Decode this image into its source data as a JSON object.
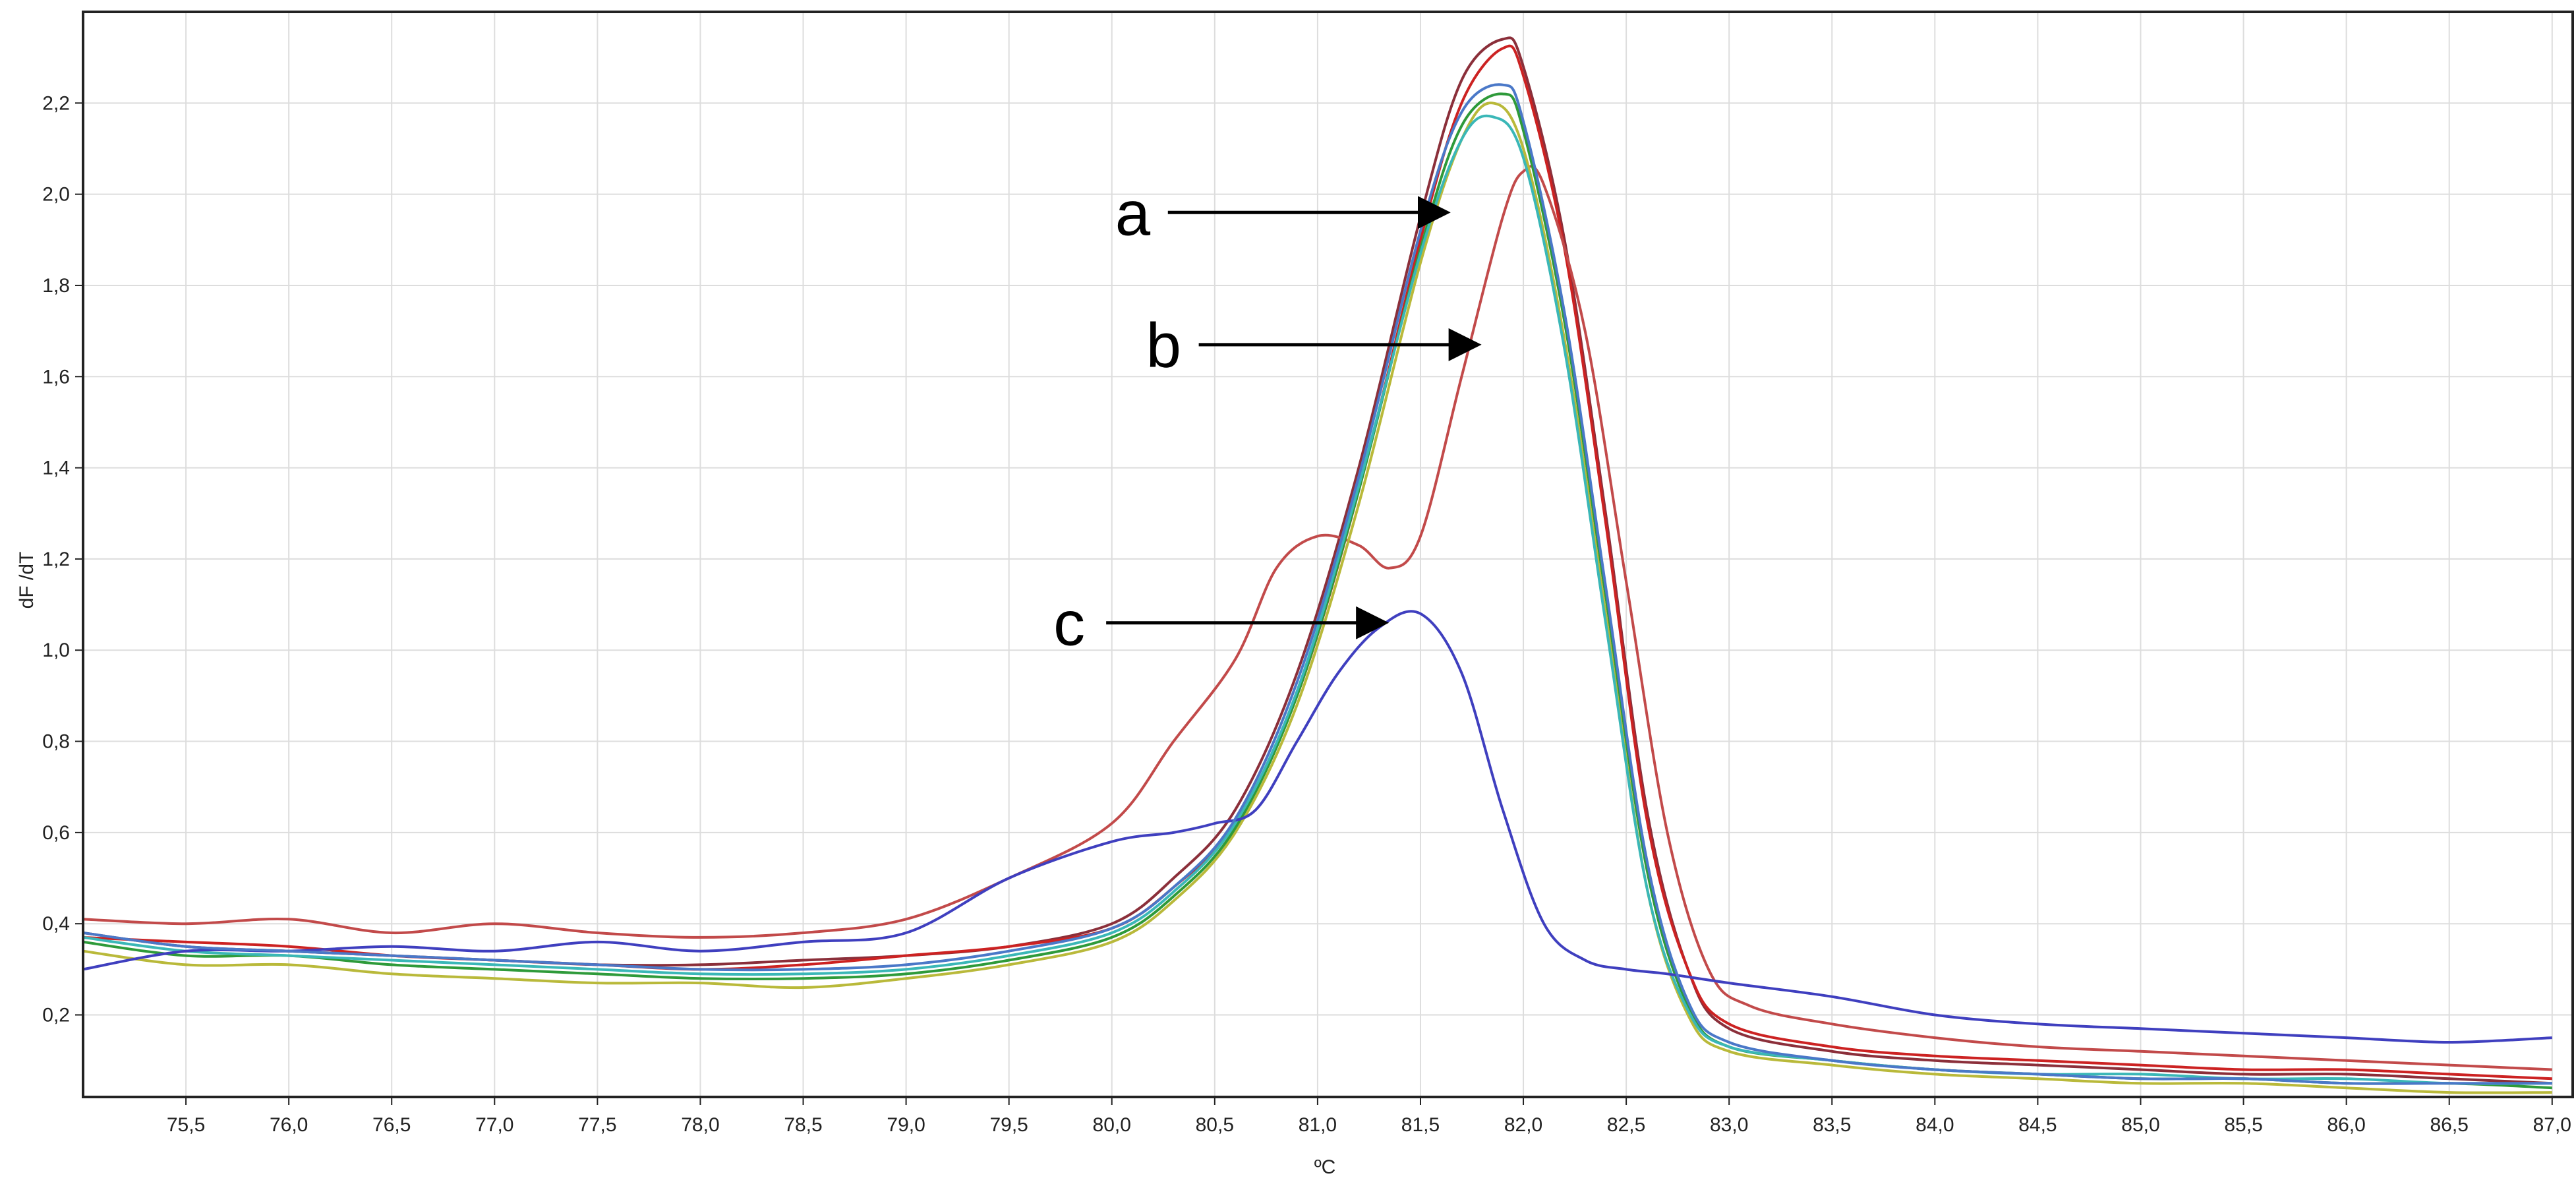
{
  "chart_data": {
    "type": "line",
    "title": "",
    "xlabel": "ºC",
    "ylabel": "dF /dT",
    "xlim": [
      75.0,
      87.1
    ],
    "ylim": [
      0.02,
      2.4
    ],
    "grid": true,
    "x_ticks": [
      75.5,
      76.0,
      76.5,
      77.0,
      77.5,
      78.0,
      78.5,
      79.0,
      79.5,
      80.0,
      80.5,
      81.0,
      81.5,
      82.0,
      82.5,
      83.0,
      83.5,
      84.0,
      84.5,
      85.0,
      85.5,
      86.0,
      86.5,
      87.0
    ],
    "x_tick_labels": [
      "75,5",
      "76,0",
      "76,5",
      "77,0",
      "77,5",
      "78,0",
      "78,5",
      "79,0",
      "79,5",
      "80,0",
      "80,5",
      "81,0",
      "81,5",
      "82,0",
      "82,5",
      "83,0",
      "83,5",
      "84,0",
      "84,5",
      "85,0",
      "85,5",
      "86,0",
      "86,5",
      "87,0"
    ],
    "y_ticks": [
      0.2,
      0.4,
      0.6,
      0.8,
      1.0,
      1.2,
      1.4,
      1.6,
      1.8,
      2.0,
      2.2
    ],
    "y_tick_labels": [
      "0,2",
      "0,4",
      "0,6",
      "0,8",
      "1,0",
      "1,2",
      "1,4",
      "1,6",
      "1,8",
      "2,0",
      "2,2"
    ],
    "series": [
      {
        "color": "#8b2f3a",
        "x": [
          75.0,
          75.5,
          76.0,
          76.5,
          77.0,
          77.5,
          78.0,
          78.5,
          79.0,
          79.5,
          80.0,
          80.3,
          80.6,
          80.9,
          81.2,
          81.5,
          81.7,
          81.9,
          82.0,
          82.2,
          82.4,
          82.6,
          82.8,
          83.0,
          83.5,
          84.0,
          84.5,
          85.0,
          85.5,
          86.0,
          86.5,
          87.0
        ],
        "y": [
          0.38,
          0.35,
          0.34,
          0.33,
          0.32,
          0.31,
          0.31,
          0.32,
          0.33,
          0.35,
          0.4,
          0.5,
          0.65,
          0.95,
          1.4,
          1.95,
          2.25,
          2.34,
          2.28,
          1.9,
          1.3,
          0.65,
          0.3,
          0.17,
          0.12,
          0.1,
          0.09,
          0.08,
          0.07,
          0.07,
          0.06,
          0.05
        ]
      },
      {
        "color": "#cc2222",
        "x": [
          75.0,
          75.5,
          76.0,
          76.5,
          77.0,
          77.5,
          78.0,
          78.5,
          79.0,
          79.5,
          80.0,
          80.3,
          80.6,
          80.9,
          81.2,
          81.5,
          81.7,
          81.9,
          82.0,
          82.2,
          82.4,
          82.6,
          82.8,
          83.0,
          83.5,
          84.0,
          84.5,
          85.0,
          85.5,
          86.0,
          86.5,
          87.0
        ],
        "y": [
          0.37,
          0.36,
          0.35,
          0.33,
          0.32,
          0.31,
          0.3,
          0.31,
          0.33,
          0.35,
          0.39,
          0.48,
          0.62,
          0.9,
          1.35,
          1.9,
          2.2,
          2.32,
          2.26,
          1.88,
          1.28,
          0.63,
          0.3,
          0.18,
          0.13,
          0.11,
          0.1,
          0.09,
          0.08,
          0.08,
          0.07,
          0.06
        ]
      },
      {
        "color": "#c24a4a",
        "x": [
          75.0,
          75.5,
          76.0,
          76.5,
          77.0,
          77.5,
          78.0,
          78.5,
          79.0,
          79.5,
          80.0,
          80.3,
          80.6,
          80.8,
          81.0,
          81.2,
          81.35,
          81.5,
          81.7,
          81.9,
          82.0,
          82.1,
          82.3,
          82.5,
          82.7,
          82.9,
          83.1,
          83.5,
          84.0,
          84.5,
          85.0,
          85.5,
          86.0,
          86.5,
          87.0
        ],
        "y": [
          0.41,
          0.4,
          0.41,
          0.38,
          0.4,
          0.38,
          0.37,
          0.38,
          0.41,
          0.5,
          0.62,
          0.8,
          0.98,
          1.18,
          1.25,
          1.23,
          1.18,
          1.25,
          1.6,
          1.95,
          2.05,
          2.02,
          1.7,
          1.15,
          0.6,
          0.3,
          0.22,
          0.18,
          0.15,
          0.13,
          0.12,
          0.11,
          0.1,
          0.09,
          0.08
        ]
      },
      {
        "color": "#b9b93a",
        "x": [
          75.0,
          75.5,
          76.0,
          76.5,
          77.0,
          77.5,
          78.0,
          78.5,
          79.0,
          79.5,
          80.0,
          80.3,
          80.6,
          80.9,
          81.2,
          81.5,
          81.7,
          81.85,
          82.0,
          82.2,
          82.4,
          82.6,
          82.8,
          83.0,
          83.5,
          84.0,
          84.5,
          85.0,
          85.5,
          86.0,
          86.5,
          87.0
        ],
        "y": [
          0.34,
          0.31,
          0.31,
          0.29,
          0.28,
          0.27,
          0.27,
          0.26,
          0.28,
          0.31,
          0.36,
          0.45,
          0.6,
          0.88,
          1.32,
          1.85,
          2.12,
          2.2,
          2.1,
          1.68,
          1.08,
          0.48,
          0.2,
          0.12,
          0.09,
          0.07,
          0.06,
          0.05,
          0.05,
          0.04,
          0.03,
          0.03
        ]
      },
      {
        "color": "#2e9a3a",
        "x": [
          75.0,
          75.5,
          76.0,
          76.5,
          77.0,
          77.5,
          78.0,
          78.5,
          79.0,
          79.5,
          80.0,
          80.3,
          80.6,
          80.9,
          81.2,
          81.5,
          81.7,
          81.9,
          82.0,
          82.2,
          82.4,
          82.6,
          82.8,
          83.0,
          83.5,
          84.0,
          84.5,
          85.0,
          85.5,
          86.0,
          86.5,
          87.0
        ],
        "y": [
          0.36,
          0.33,
          0.33,
          0.31,
          0.3,
          0.29,
          0.28,
          0.28,
          0.29,
          0.32,
          0.37,
          0.46,
          0.61,
          0.9,
          1.35,
          1.88,
          2.15,
          2.22,
          2.14,
          1.72,
          1.12,
          0.52,
          0.22,
          0.13,
          0.1,
          0.08,
          0.07,
          0.06,
          0.06,
          0.05,
          0.05,
          0.04
        ]
      },
      {
        "color": "#3ab7b7",
        "x": [
          75.0,
          75.5,
          76.0,
          76.5,
          77.0,
          77.5,
          78.0,
          78.5,
          79.0,
          79.5,
          80.0,
          80.3,
          80.6,
          80.9,
          81.2,
          81.5,
          81.7,
          81.85,
          82.0,
          82.2,
          82.4,
          82.6,
          82.8,
          83.0,
          83.5,
          84.0,
          84.5,
          85.0,
          85.5,
          86.0,
          86.5,
          87.0
        ],
        "y": [
          0.37,
          0.34,
          0.33,
          0.32,
          0.31,
          0.3,
          0.29,
          0.29,
          0.3,
          0.33,
          0.38,
          0.47,
          0.62,
          0.91,
          1.36,
          1.87,
          2.12,
          2.17,
          2.08,
          1.66,
          1.06,
          0.48,
          0.21,
          0.13,
          0.1,
          0.08,
          0.07,
          0.07,
          0.06,
          0.06,
          0.05,
          0.05
        ]
      },
      {
        "color": "#3f3fbf",
        "x": [
          75.0,
          75.5,
          76.0,
          76.5,
          77.0,
          77.5,
          78.0,
          78.5,
          79.0,
          79.5,
          80.0,
          80.3,
          80.5,
          80.7,
          80.9,
          81.1,
          81.3,
          81.5,
          81.7,
          81.9,
          82.1,
          82.3,
          82.5,
          82.7,
          83.0,
          83.5,
          84.0,
          84.5,
          85.0,
          85.5,
          86.0,
          86.5,
          87.0
        ],
        "y": [
          0.3,
          0.34,
          0.34,
          0.35,
          0.34,
          0.36,
          0.34,
          0.36,
          0.38,
          0.5,
          0.58,
          0.6,
          0.62,
          0.65,
          0.8,
          0.95,
          1.05,
          1.08,
          0.95,
          0.65,
          0.4,
          0.32,
          0.3,
          0.29,
          0.27,
          0.24,
          0.2,
          0.18,
          0.17,
          0.16,
          0.15,
          0.14,
          0.15
        ]
      },
      {
        "color": "#4a78c8",
        "x": [
          75.0,
          75.5,
          76.0,
          76.5,
          77.0,
          77.5,
          78.0,
          78.5,
          79.0,
          79.5,
          80.0,
          80.3,
          80.6,
          80.9,
          81.2,
          81.5,
          81.7,
          81.9,
          82.0,
          82.2,
          82.4,
          82.6,
          82.8,
          83.0,
          83.5,
          84.0,
          84.5,
          85.0,
          85.5,
          86.0,
          86.5,
          87.0
        ],
        "y": [
          0.38,
          0.35,
          0.34,
          0.33,
          0.32,
          0.31,
          0.3,
          0.3,
          0.31,
          0.34,
          0.39,
          0.48,
          0.63,
          0.93,
          1.38,
          1.92,
          2.18,
          2.24,
          2.16,
          1.74,
          1.14,
          0.54,
          0.23,
          0.14,
          0.1,
          0.08,
          0.07,
          0.06,
          0.06,
          0.05,
          0.05,
          0.05
        ]
      }
    ],
    "annotations": [
      {
        "label": "a",
        "x": 81.65,
        "y": 1.96
      },
      {
        "label": "b",
        "x": 81.8,
        "y": 1.67
      },
      {
        "label": "c",
        "x": 81.35,
        "y": 1.06
      }
    ]
  }
}
